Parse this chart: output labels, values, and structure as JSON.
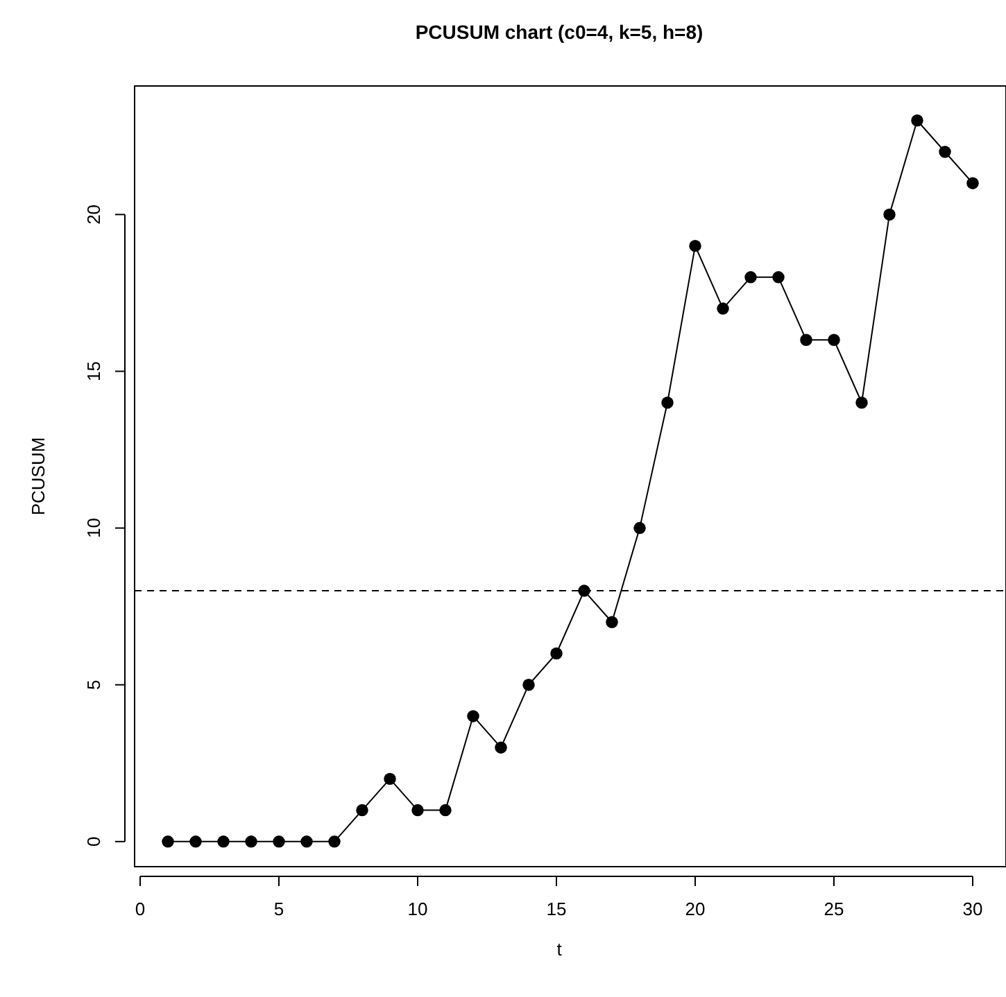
{
  "chart_data": {
    "type": "line",
    "title": "PCUSUM chart (c0=4, k=5, h=8)",
    "xlabel": "t",
    "ylabel": "PCUSUM",
    "x": [
      1,
      2,
      3,
      4,
      5,
      6,
      7,
      8,
      9,
      10,
      11,
      12,
      13,
      14,
      15,
      16,
      17,
      18,
      19,
      20,
      21,
      22,
      23,
      24,
      25,
      26,
      27,
      28,
      29,
      30
    ],
    "values": [
      0,
      0,
      0,
      0,
      0,
      0,
      0,
      1,
      2,
      1,
      1,
      4,
      3,
      5,
      6,
      8,
      7,
      10,
      14,
      19,
      17,
      18,
      18,
      16,
      16,
      14,
      20,
      23,
      22,
      21
    ],
    "color": "#000000",
    "marker": "circle",
    "xlim": [
      -0.2,
      31.2
    ],
    "xticks": [
      0,
      5,
      10,
      15,
      20,
      25,
      30
    ],
    "ylim": [
      -0.8,
      24.1
    ],
    "yticks": [
      0,
      5,
      10,
      15,
      20
    ],
    "ref_lines": [
      {
        "axis": "y",
        "value": 8,
        "line_style": "dashed",
        "color": "#000000"
      }
    ]
  }
}
